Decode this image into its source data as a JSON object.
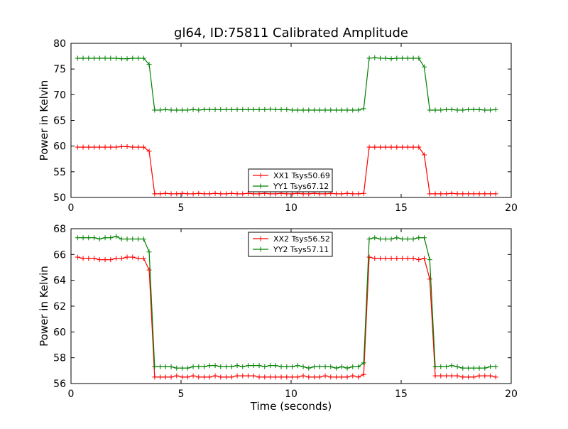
{
  "figure": {
    "title": "gl64, ID:75811 Calibrated Amplitude",
    "xlabel": "Time (seconds)"
  },
  "colors": {
    "xx": "#ff0000",
    "yy": "#008000"
  },
  "chart_data": [
    {
      "type": "line",
      "title": "gl64, ID:75811 Calibrated Amplitude",
      "xlabel": "",
      "ylabel": "Power in Kelvin",
      "xlim": [
        0,
        20
      ],
      "ylim": [
        50,
        80
      ],
      "xticks": [
        0,
        5,
        10,
        15,
        20
      ],
      "yticks": [
        50,
        55,
        60,
        65,
        70,
        75,
        80
      ],
      "legend": "bottom-center",
      "grid": false,
      "x": [
        0.3,
        0.55,
        0.8,
        1.05,
        1.3,
        1.55,
        1.8,
        2.05,
        2.3,
        2.55,
        2.8,
        3.05,
        3.3,
        3.55,
        3.8,
        4.05,
        4.3,
        4.55,
        4.8,
        5.05,
        5.3,
        5.55,
        5.8,
        6.05,
        6.3,
        6.55,
        6.8,
        7.05,
        7.3,
        7.55,
        7.8,
        8.05,
        8.3,
        8.55,
        8.8,
        9.05,
        9.3,
        9.55,
        9.8,
        10.05,
        10.3,
        10.55,
        10.8,
        11.05,
        11.3,
        11.55,
        11.8,
        12.05,
        12.3,
        12.55,
        12.8,
        13.05,
        13.3,
        13.55,
        13.8,
        14.05,
        14.3,
        14.55,
        14.8,
        15.05,
        15.3,
        15.55,
        15.8,
        16.05,
        16.3,
        16.55,
        16.8,
        17.05,
        17.3,
        17.55,
        17.8,
        18.05,
        18.3,
        18.55,
        18.8,
        19.05,
        19.3
      ],
      "series": [
        {
          "name": "XX1 Tsys50.69",
          "color": "#ff0000",
          "values": [
            59.8,
            59.8,
            59.8,
            59.8,
            59.8,
            59.8,
            59.8,
            59.8,
            59.9,
            59.9,
            59.8,
            59.8,
            59.8,
            59.0,
            50.7,
            50.7,
            50.8,
            50.7,
            50.7,
            50.8,
            50.7,
            50.7,
            50.8,
            50.7,
            50.7,
            50.8,
            50.7,
            50.7,
            50.8,
            50.7,
            50.7,
            50.8,
            50.7,
            50.7,
            50.8,
            50.7,
            50.7,
            50.8,
            50.7,
            50.7,
            50.8,
            50.7,
            50.7,
            50.8,
            50.7,
            50.7,
            50.8,
            50.7,
            50.7,
            50.8,
            50.7,
            50.7,
            50.8,
            59.8,
            59.8,
            59.8,
            59.8,
            59.8,
            59.8,
            59.8,
            59.8,
            59.8,
            59.8,
            58.3,
            50.7,
            50.7,
            50.7,
            50.7,
            50.8,
            50.7,
            50.7,
            50.7,
            50.7,
            50.7,
            50.7,
            50.7,
            50.7
          ]
        },
        {
          "name": "YY1 Tsys67.12",
          "color": "#008000",
          "values": [
            77.1,
            77.1,
            77.1,
            77.1,
            77.1,
            77.1,
            77.1,
            77.1,
            77.0,
            77.0,
            77.1,
            77.1,
            77.1,
            75.9,
            67.0,
            67.0,
            67.1,
            67.0,
            67.0,
            67.0,
            67.0,
            67.1,
            67.0,
            67.1,
            67.1,
            67.1,
            67.1,
            67.1,
            67.1,
            67.1,
            67.1,
            67.1,
            67.1,
            67.1,
            67.1,
            67.2,
            67.1,
            67.1,
            67.1,
            67.0,
            67.0,
            67.0,
            67.0,
            67.0,
            67.0,
            67.0,
            67.0,
            67.0,
            67.0,
            67.0,
            67.0,
            67.0,
            67.3,
            77.1,
            77.2,
            77.1,
            77.1,
            77.0,
            77.1,
            77.1,
            77.1,
            77.1,
            77.1,
            75.4,
            67.0,
            67.0,
            67.0,
            67.1,
            67.1,
            67.0,
            67.0,
            67.1,
            67.1,
            67.1,
            67.0,
            67.0,
            67.1
          ]
        }
      ]
    },
    {
      "type": "line",
      "title": "",
      "xlabel": "Time (seconds)",
      "ylabel": "Power in Kelvin",
      "xlim": [
        0,
        20
      ],
      "ylim": [
        56,
        68
      ],
      "xticks": [
        0,
        5,
        10,
        15,
        20
      ],
      "yticks": [
        56,
        58,
        60,
        62,
        64,
        66,
        68
      ],
      "legend": "top-center",
      "grid": false,
      "x": [
        0.3,
        0.55,
        0.8,
        1.05,
        1.3,
        1.55,
        1.8,
        2.05,
        2.3,
        2.55,
        2.8,
        3.05,
        3.3,
        3.55,
        3.8,
        4.05,
        4.3,
        4.55,
        4.8,
        5.05,
        5.3,
        5.55,
        5.8,
        6.05,
        6.3,
        6.55,
        6.8,
        7.05,
        7.3,
        7.55,
        7.8,
        8.05,
        8.3,
        8.55,
        8.8,
        9.05,
        9.3,
        9.55,
        9.8,
        10.05,
        10.3,
        10.55,
        10.8,
        11.05,
        11.3,
        11.55,
        11.8,
        12.05,
        12.3,
        12.55,
        12.8,
        13.05,
        13.3,
        13.55,
        13.8,
        14.05,
        14.3,
        14.55,
        14.8,
        15.05,
        15.3,
        15.55,
        15.8,
        16.05,
        16.3,
        16.55,
        16.8,
        17.05,
        17.3,
        17.55,
        17.8,
        18.05,
        18.3,
        18.55,
        18.8,
        19.05,
        19.3
      ],
      "series": [
        {
          "name": "XX2 Tsys56.52",
          "color": "#ff0000",
          "values": [
            65.8,
            65.7,
            65.7,
            65.7,
            65.6,
            65.6,
            65.6,
            65.7,
            65.7,
            65.8,
            65.8,
            65.7,
            65.7,
            64.8,
            56.5,
            56.5,
            56.5,
            56.5,
            56.6,
            56.5,
            56.5,
            56.6,
            56.5,
            56.5,
            56.5,
            56.6,
            56.5,
            56.5,
            56.5,
            56.6,
            56.6,
            56.6,
            56.6,
            56.5,
            56.5,
            56.5,
            56.5,
            56.5,
            56.5,
            56.5,
            56.5,
            56.6,
            56.5,
            56.5,
            56.5,
            56.6,
            56.5,
            56.5,
            56.5,
            56.5,
            56.6,
            56.5,
            56.7,
            65.8,
            65.7,
            65.7,
            65.7,
            65.7,
            65.7,
            65.7,
            65.7,
            65.7,
            65.6,
            65.7,
            64.1,
            56.6,
            56.6,
            56.6,
            56.6,
            56.6,
            56.5,
            56.5,
            56.5,
            56.6,
            56.6,
            56.6,
            56.5
          ]
        },
        {
          "name": "YY2 Tsys57.11",
          "color": "#008000",
          "values": [
            67.3,
            67.3,
            67.3,
            67.3,
            67.2,
            67.3,
            67.3,
            67.4,
            67.2,
            67.2,
            67.2,
            67.2,
            67.2,
            66.2,
            57.3,
            57.3,
            57.3,
            57.3,
            57.2,
            57.2,
            57.2,
            57.3,
            57.3,
            57.3,
            57.4,
            57.4,
            57.3,
            57.3,
            57.3,
            57.4,
            57.3,
            57.4,
            57.4,
            57.4,
            57.3,
            57.4,
            57.4,
            57.3,
            57.3,
            57.3,
            57.4,
            57.3,
            57.2,
            57.3,
            57.3,
            57.3,
            57.3,
            57.2,
            57.3,
            57.2,
            57.3,
            57.3,
            57.6,
            67.2,
            67.3,
            67.2,
            67.2,
            67.2,
            67.3,
            67.2,
            67.2,
            67.2,
            67.3,
            67.3,
            65.6,
            57.3,
            57.3,
            57.3,
            57.4,
            57.3,
            57.2,
            57.2,
            57.2,
            57.2,
            57.2,
            57.3,
            57.3
          ]
        }
      ]
    }
  ]
}
